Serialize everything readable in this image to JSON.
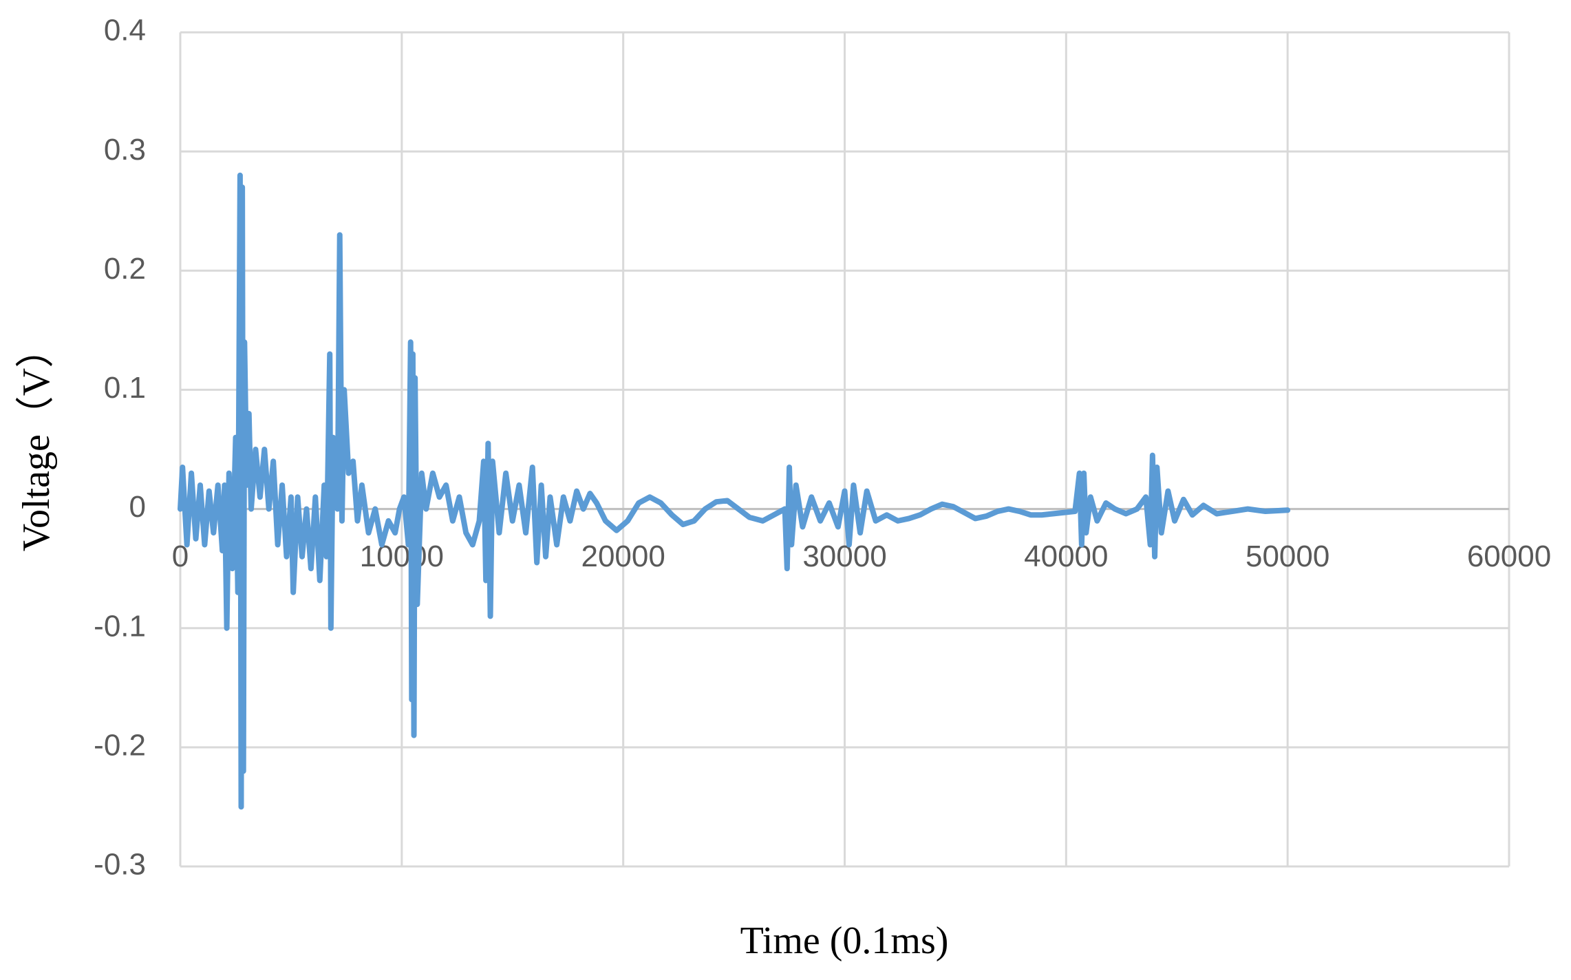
{
  "chart_data": {
    "type": "line",
    "xlabel": "Time (0.1ms)",
    "ylabel": "Voltage（V）",
    "xlim": [
      0,
      60000
    ],
    "xticks": [
      0,
      10000,
      20000,
      30000,
      40000,
      50000,
      60000
    ],
    "ylim": [
      -0.3,
      0.4
    ],
    "yticks": [
      -0.3,
      -0.2,
      -0.1,
      0,
      0.1,
      0.2,
      0.3,
      0.4
    ],
    "grid": true,
    "x": [
      0,
      100,
      300,
      500,
      700,
      900,
      1100,
      1300,
      1500,
      1700,
      1900,
      2000,
      2100,
      2200,
      2350,
      2500,
      2600,
      2700,
      2750,
      2800,
      2850,
      2900,
      3000,
      3100,
      3200,
      3400,
      3600,
      3800,
      4000,
      4200,
      4400,
      4600,
      4800,
      5000,
      5100,
      5300,
      5500,
      5700,
      5900,
      6100,
      6300,
      6500,
      6600,
      6750,
      6800,
      6900,
      7100,
      7200,
      7300,
      7400,
      7600,
      7800,
      8000,
      8200,
      8500,
      8800,
      9100,
      9400,
      9700,
      9900,
      10100,
      10300,
      10400,
      10450,
      10500,
      10550,
      10600,
      10700,
      10900,
      11100,
      11400,
      11700,
      12000,
      12300,
      12600,
      12900,
      13200,
      13500,
      13700,
      13800,
      13900,
      14000,
      14100,
      14400,
      14700,
      15000,
      15300,
      15600,
      15900,
      16100,
      16300,
      16500,
      16700,
      17000,
      17300,
      17600,
      17900,
      18200,
      18500,
      18800,
      19200,
      19700,
      20200,
      20700,
      21200,
      21700,
      22200,
      22700,
      23200,
      23700,
      24200,
      24700,
      25200,
      25700,
      26300,
      26800,
      27300,
      27400,
      27500,
      27600,
      27800,
      28100,
      28500,
      28900,
      29300,
      29700,
      30000,
      30200,
      30400,
      30700,
      31000,
      31400,
      31900,
      32400,
      32900,
      33400,
      33900,
      34400,
      34900,
      35400,
      35900,
      36400,
      36900,
      37400,
      37900,
      38400,
      38900,
      39400,
      39900,
      40400,
      40600,
      40700,
      40800,
      40900,
      41100,
      41400,
      41800,
      42200,
      42700,
      43200,
      43600,
      43800,
      43900,
      44000,
      44100,
      44300,
      44600,
      44900,
      45300,
      45700,
      46200,
      46800,
      47500,
      48200,
      49000,
      50000
    ],
    "series": [
      {
        "color": "#5b9bd5",
        "values": [
          0,
          0.035,
          -0.03,
          0.03,
          -0.025,
          0.02,
          -0.03,
          0.015,
          -0.02,
          0.02,
          -0.035,
          0.02,
          -0.1,
          0.03,
          -0.05,
          0.06,
          -0.07,
          0.28,
          -0.25,
          0.27,
          -0.22,
          0.14,
          0.02,
          0.08,
          0,
          0.05,
          0.01,
          0.05,
          0,
          0.04,
          -0.03,
          0.02,
          -0.04,
          0.01,
          -0.07,
          0.01,
          -0.04,
          0,
          -0.05,
          0.01,
          -0.06,
          0.02,
          -0.04,
          0.13,
          -0.1,
          0.06,
          0,
          0.23,
          -0.01,
          0.1,
          0.03,
          0.04,
          -0.01,
          0.02,
          -0.02,
          0,
          -0.03,
          -0.01,
          -0.02,
          0,
          0.01,
          -0.03,
          0.14,
          -0.16,
          0.13,
          -0.19,
          0.11,
          -0.08,
          0.03,
          0,
          0.03,
          0.01,
          0.02,
          -0.01,
          0.01,
          -0.02,
          -0.03,
          -0.01,
          0.04,
          -0.06,
          0.055,
          -0.09,
          0.04,
          -0.02,
          0.03,
          -0.01,
          0.02,
          -0.02,
          0.035,
          -0.045,
          0.02,
          -0.04,
          0.01,
          -0.03,
          0.01,
          -0.01,
          0.015,
          0,
          0.013,
          0.005,
          -0.01,
          -0.018,
          -0.01,
          0.005,
          0.01,
          0.005,
          -0.005,
          -0.013,
          -0.01,
          0,
          0.006,
          0.007,
          0,
          -0.007,
          -0.01,
          -0.005,
          0,
          -0.05,
          0.035,
          -0.03,
          0.02,
          -0.015,
          0.01,
          -0.01,
          0.005,
          -0.015,
          0.015,
          -0.03,
          0.02,
          -0.02,
          0.015,
          -0.01,
          -0.005,
          -0.01,
          -0.008,
          -0.005,
          0,
          0.004,
          0.002,
          -0.003,
          -0.008,
          -0.006,
          -0.002,
          0,
          -0.002,
          -0.005,
          -0.005,
          -0.004,
          -0.003,
          -0.002,
          0.03,
          -0.03,
          0.03,
          -0.02,
          0.01,
          -0.01,
          0.005,
          0,
          -0.004,
          0,
          0.01,
          -0.03,
          0.045,
          -0.04,
          0.035,
          -0.02,
          0.015,
          -0.01,
          0.008,
          -0.005,
          0.003,
          -0.004,
          -0.002,
          0,
          -0.002,
          -0.001
        ]
      }
    ]
  }
}
